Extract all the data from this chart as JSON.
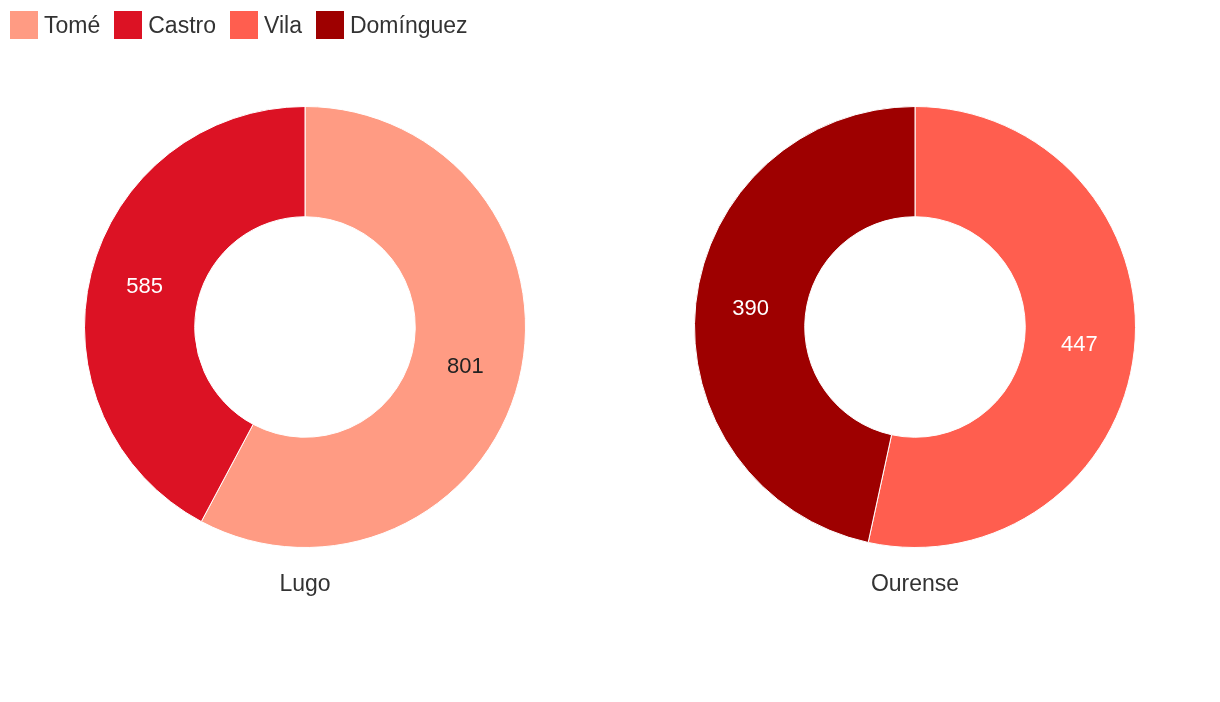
{
  "chart_data": [
    {
      "type": "donut",
      "title": "Lugo",
      "categories": [
        "Tomé",
        "Castro"
      ],
      "values": [
        801,
        585
      ],
      "colors": [
        "#ff9b83",
        "#dc1224"
      ],
      "data_labels": true,
      "legend": "top left"
    },
    {
      "type": "donut",
      "title": "Ourense",
      "categories": [
        "Vila",
        "Domínguez"
      ],
      "values": [
        447,
        390
      ],
      "colors": [
        "#ff5e4f",
        "#9e0000"
      ],
      "data_labels": true,
      "legend": "top left"
    }
  ]
}
